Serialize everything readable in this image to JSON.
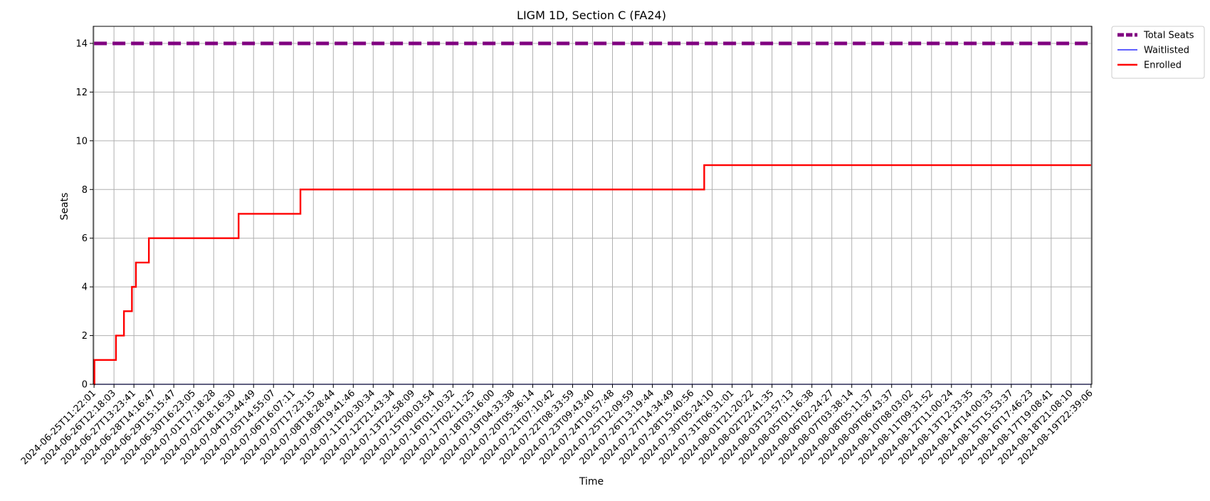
{
  "chart_data": {
    "type": "line",
    "title": "LIGM 1D, Section C (FA24)",
    "xlabel": "Time",
    "ylabel": "Seats",
    "ylim": [
      0,
      14.7
    ],
    "yticks": [
      0,
      2,
      4,
      6,
      8,
      10,
      12,
      14
    ],
    "grid": true,
    "legend_placement": "outside-top-right",
    "x_start": "2024-06-25T11:22:01",
    "x_end": "2024-08-19T22:39:06",
    "xticks": [
      "2024-06-25T11:22:01",
      "2024-06-26T12:18:03",
      "2024-06-27T13:23:41",
      "2024-06-28T14:16:47",
      "2024-06-29T15:15:47",
      "2024-06-30T16:23:05",
      "2024-07-01T17:18:28",
      "2024-07-02T18:16:30",
      "2024-07-04T13:44:49",
      "2024-07-05T14:55:07",
      "2024-07-06T16:07:11",
      "2024-07-07T17:23:15",
      "2024-07-08T18:28:44",
      "2024-07-09T19:41:46",
      "2024-07-11T20:30:34",
      "2024-07-12T21:43:34",
      "2024-07-13T22:58:09",
      "2024-07-15T00:03:54",
      "2024-07-16T01:10:32",
      "2024-07-17T02:11:25",
      "2024-07-18T03:16:00",
      "2024-07-19T04:33:38",
      "2024-07-20T05:36:14",
      "2024-07-21T07:10:42",
      "2024-07-22T08:33:59",
      "2024-07-23T09:43:40",
      "2024-07-24T10:57:48",
      "2024-07-25T12:09:59",
      "2024-07-26T13:19:44",
      "2024-07-27T14:34:49",
      "2024-07-28T15:40:56",
      "2024-07-30T05:24:10",
      "2024-07-31T06:31:01",
      "2024-08-01T21:20:22",
      "2024-08-02T22:41:35",
      "2024-08-03T23:57:13",
      "2024-08-05T01:16:38",
      "2024-08-06T02:24:27",
      "2024-08-07T03:38:14",
      "2024-08-08T05:11:37",
      "2024-08-09T06:43:37",
      "2024-08-10T08:03:02",
      "2024-08-11T09:31:52",
      "2024-08-12T11:00:24",
      "2024-08-13T12:33:35",
      "2024-08-14T14:00:33",
      "2024-08-15T15:53:37",
      "2024-08-16T17:46:23",
      "2024-08-17T19:08:41",
      "2024-08-18T21:08:10",
      "2024-08-19T22:39:06"
    ],
    "series": [
      {
        "name": "Total Seats",
        "color": "#800080",
        "style": "dashed",
        "steps": [
          [
            0,
            14
          ],
          [
            50,
            14
          ]
        ]
      },
      {
        "name": "Waitlisted",
        "color": "#0000ff",
        "style": "solid",
        "steps": [
          [
            0,
            0
          ],
          [
            50,
            0
          ]
        ]
      },
      {
        "name": "Enrolled",
        "color": "#ff0000",
        "style": "step",
        "steps": [
          [
            0,
            0
          ],
          [
            0.02,
            1
          ],
          [
            1.1,
            2
          ],
          [
            1.5,
            3
          ],
          [
            1.9,
            4
          ],
          [
            2.1,
            5
          ],
          [
            2.75,
            6
          ],
          [
            7.25,
            7
          ],
          [
            10.35,
            8
          ],
          [
            30.6,
            9
          ],
          [
            50,
            9
          ]
        ]
      }
    ]
  }
}
